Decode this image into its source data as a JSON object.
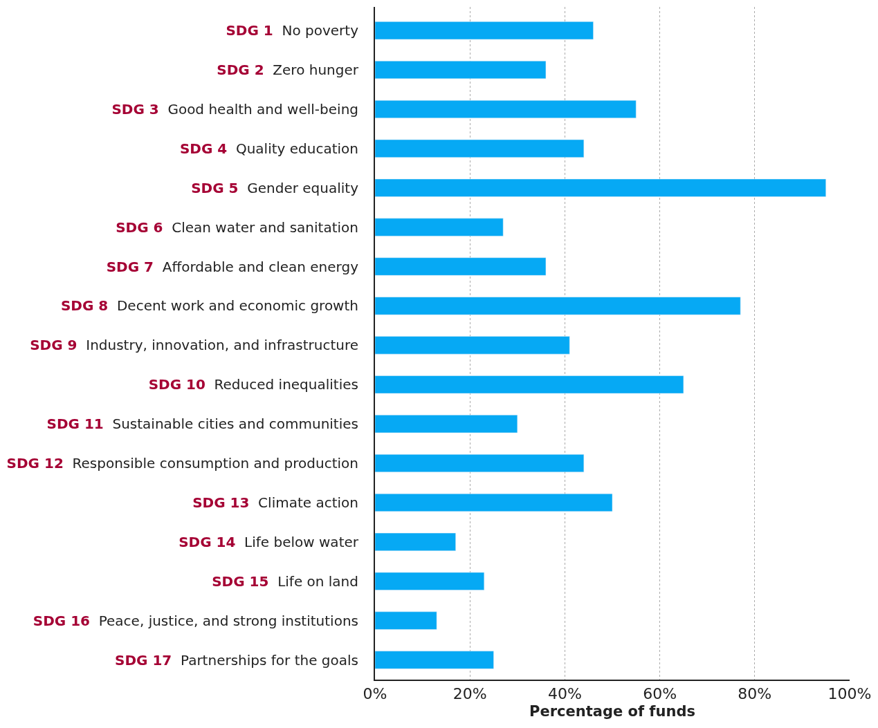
{
  "chart_data": {
    "type": "bar",
    "orientation": "horizontal",
    "xlabel": "Percentage of funds",
    "categories": [
      "SDG 1 No poverty",
      "SDG 2 Zero hunger",
      "SDG 3 Good health and well-being",
      "SDG 4 Quality education",
      "SDG 5 Gender equality",
      "SDG 6 Clean water and sanitation",
      "SDG 7 Affordable and clean energy",
      "SDG 8 Decent work and economic growth",
      "SDG 9 Industry, innovation, and infrastructure",
      "SDG 10 Reduced inequalities",
      "SDG 11 Sustainable cities and communities",
      "SDG 12 Responsible consumption and production",
      "SDG 13 Climate action",
      "SDG 14 Life below water",
      "SDG 15 Life on land",
      "SDG 16 Peace, justice, and strong institutions",
      "SDG 17 Partnerships for the goals"
    ],
    "values": [
      46,
      36,
      55,
      44,
      95,
      27,
      36,
      77,
      41,
      65,
      30,
      44,
      50,
      17,
      23,
      13,
      25
    ],
    "color": "#06a9f4",
    "xlim": [
      0,
      100
    ],
    "xticks": [
      {
        "value": 0,
        "label": "0%"
      },
      {
        "value": 20,
        "label": "20%"
      },
      {
        "value": 40,
        "label": "40%"
      },
      {
        "value": 60,
        "label": "60%"
      },
      {
        "value": 80,
        "label": "80%"
      },
      {
        "value": 100,
        "label": "100%"
      }
    ],
    "grid": "x",
    "legend": false
  }
}
